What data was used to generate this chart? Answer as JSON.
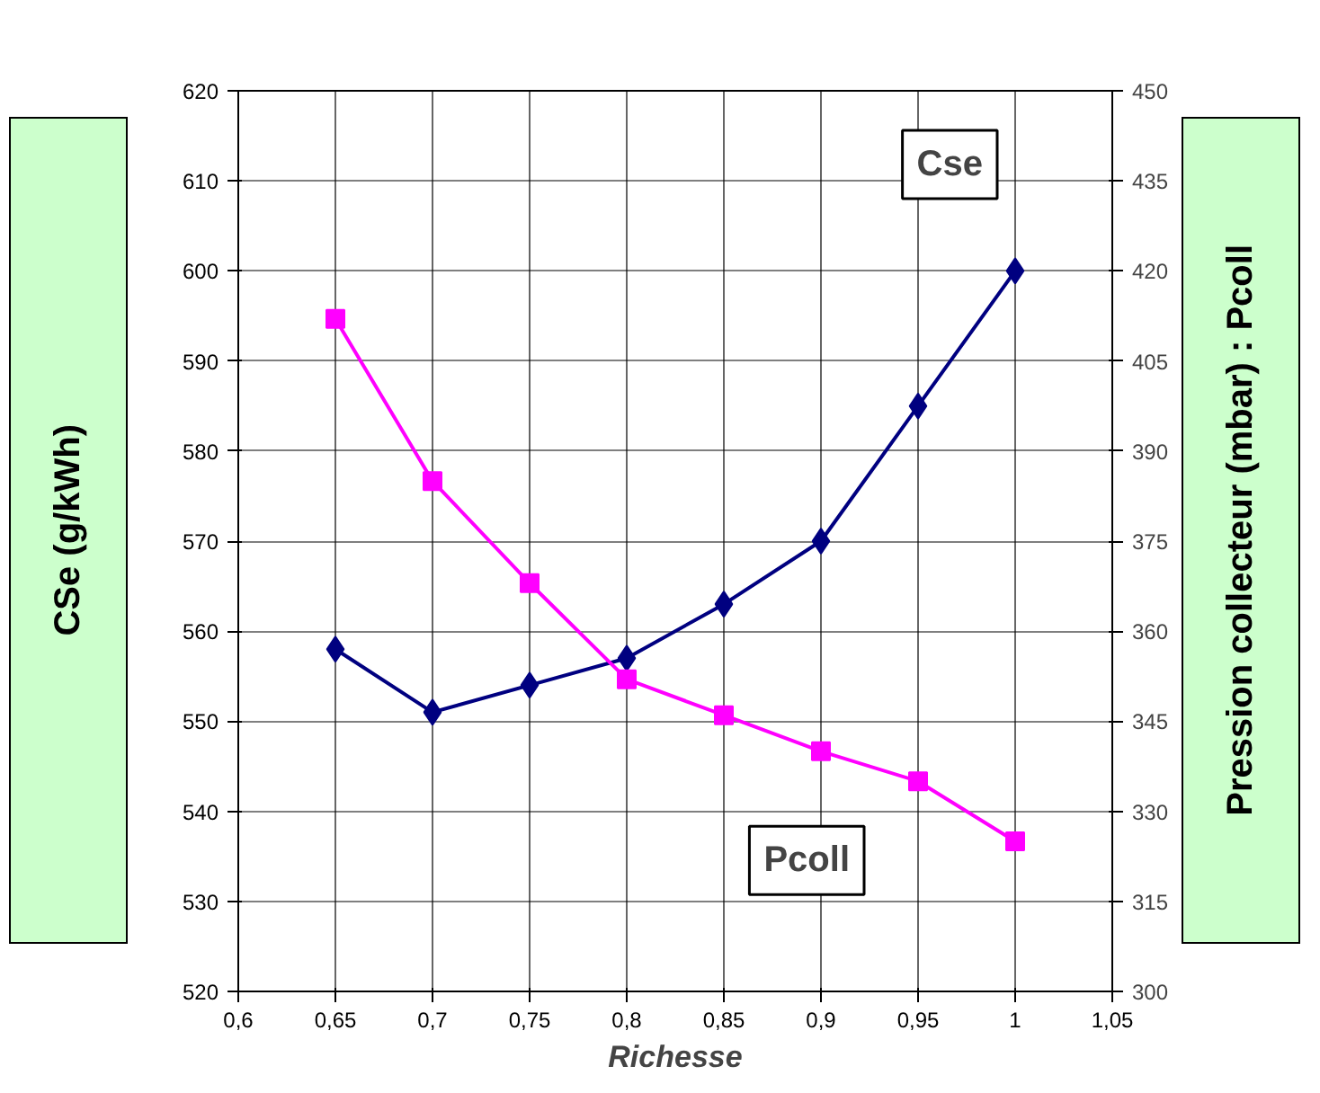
{
  "chart_data": {
    "type": "line",
    "xlabel": "Richesse",
    "ylabel": "CSe (g/kWh)",
    "y2label": "Pression collecteur (mbar) : Pcoll",
    "x": [
      0.65,
      0.7,
      0.75,
      0.8,
      0.85,
      0.9,
      0.95,
      1
    ],
    "series": [
      {
        "name": "Cse",
        "color": "#000080",
        "marker": "diamond",
        "values": [
          558,
          551,
          554,
          557,
          563,
          570,
          585,
          600
        ]
      },
      {
        "name": "Pcoll",
        "color": "#ff00ff",
        "marker": "square",
        "axis": "y2",
        "values": [
          412,
          385,
          368,
          352,
          346,
          340,
          335,
          325
        ]
      }
    ],
    "xlim": [
      0.6,
      1.05
    ],
    "xticks": [
      {
        "value": 0.6,
        "label": "0,6"
      },
      {
        "value": 0.65,
        "label": "0,65"
      },
      {
        "value": 0.7,
        "label": "0,7"
      },
      {
        "value": 0.75,
        "label": "0,75"
      },
      {
        "value": 0.8,
        "label": "0,8"
      },
      {
        "value": 0.85,
        "label": "0,85"
      },
      {
        "value": 0.9,
        "label": "0,9"
      },
      {
        "value": 0.95,
        "label": "0,95"
      },
      {
        "value": 1,
        "label": "1"
      },
      {
        "value": 1.05,
        "label": "1,05"
      }
    ],
    "ylim": [
      520,
      620
    ],
    "yticks": [
      520,
      530,
      540,
      550,
      560,
      570,
      580,
      590,
      600,
      610,
      620
    ],
    "y2lim": [
      300,
      450
    ],
    "y2ticks": [
      300,
      315,
      330,
      345,
      360,
      375,
      390,
      405,
      420,
      435,
      450
    ],
    "grid": true,
    "legend": false,
    "line_style": "solid"
  }
}
